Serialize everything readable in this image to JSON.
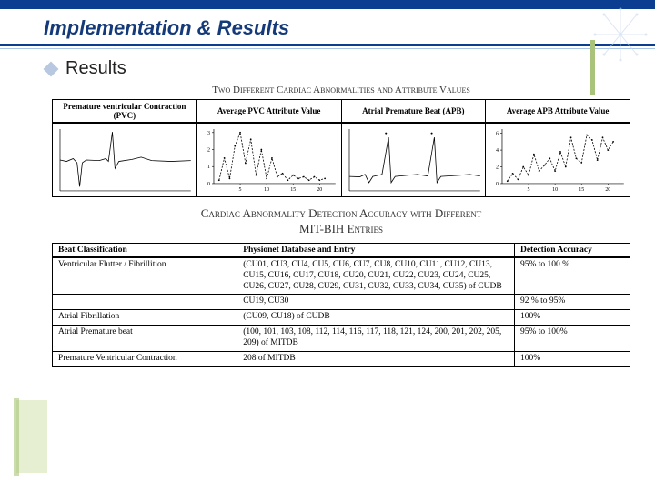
{
  "slide": {
    "title": "Implementation & Results",
    "bullet": "Results"
  },
  "chart_section": {
    "caption": "Two Different Cardiac Abnormalities and Attribute Values",
    "headers": [
      "Premature ventricular Contraction (PVC)",
      "Average PVC Attribute Value",
      "Atrial Premature Beat (APB)",
      "Average APB Attribute Value"
    ],
    "charts": {
      "pvc_wave": {
        "type": "line",
        "xlim": [
          0,
          1
        ],
        "ylim": [
          -1,
          1.2
        ],
        "line_color": "#000000",
        "line_width": 0.8,
        "background": "#ffffff",
        "points": [
          [
            0,
            0.1
          ],
          [
            0.05,
            0.05
          ],
          [
            0.1,
            0.15
          ],
          [
            0.13,
            0.0
          ],
          [
            0.15,
            -0.85
          ],
          [
            0.17,
            0.0
          ],
          [
            0.2,
            0.1
          ],
          [
            0.3,
            0.08
          ],
          [
            0.35,
            0.15
          ],
          [
            0.37,
            0.05
          ],
          [
            0.4,
            1.1
          ],
          [
            0.42,
            -0.2
          ],
          [
            0.45,
            0.05
          ],
          [
            0.55,
            0.12
          ],
          [
            0.62,
            0.2
          ],
          [
            0.7,
            0.08
          ],
          [
            0.85,
            0.05
          ],
          [
            1,
            0.08
          ]
        ]
      },
      "pvc_attr": {
        "type": "line",
        "xlim": [
          0,
          23
        ],
        "ylim": [
          0,
          3.2
        ],
        "xticks": [
          5,
          10,
          15,
          20
        ],
        "yticks": [
          0,
          1,
          2,
          3
        ],
        "line_color": "#000000",
        "dash": true,
        "line_width": 0.8,
        "marker": "dot",
        "marker_color": "#000000",
        "points": [
          [
            1,
            0.2
          ],
          [
            2,
            1.5
          ],
          [
            3,
            0.3
          ],
          [
            4,
            2.2
          ],
          [
            5,
            3.0
          ],
          [
            6,
            1.2
          ],
          [
            7,
            2.6
          ],
          [
            8,
            0.5
          ],
          [
            9,
            2.0
          ],
          [
            10,
            0.3
          ],
          [
            11,
            1.5
          ],
          [
            12,
            0.4
          ],
          [
            13,
            0.6
          ],
          [
            14,
            0.2
          ],
          [
            15,
            0.5
          ],
          [
            16,
            0.3
          ],
          [
            17,
            0.4
          ],
          [
            18,
            0.2
          ],
          [
            19,
            0.4
          ],
          [
            20,
            0.2
          ],
          [
            21,
            0.3
          ]
        ]
      },
      "apb_wave": {
        "type": "line",
        "xlim": [
          0,
          1
        ],
        "ylim": [
          -0.3,
          1.2
        ],
        "line_color": "#000000",
        "line_width": 0.8,
        "points": [
          [
            0,
            0.05
          ],
          [
            0.08,
            0.04
          ],
          [
            0.12,
            0.1
          ],
          [
            0.15,
            -0.1
          ],
          [
            0.18,
            0.05
          ],
          [
            0.25,
            0.1
          ],
          [
            0.3,
            1.0
          ],
          [
            0.32,
            -0.1
          ],
          [
            0.35,
            0.05
          ],
          [
            0.45,
            0.08
          ],
          [
            0.52,
            0.1
          ],
          [
            0.6,
            0.06
          ],
          [
            0.65,
            1.0
          ],
          [
            0.67,
            -0.1
          ],
          [
            0.7,
            0.05
          ],
          [
            0.85,
            0.08
          ],
          [
            0.92,
            0.1
          ],
          [
            1,
            0.06
          ]
        ],
        "markers_above": [
          [
            0.28,
            1.1
          ],
          [
            0.63,
            1.1
          ]
        ]
      },
      "apb_attr": {
        "type": "line",
        "xlim": [
          0,
          23
        ],
        "ylim": [
          0,
          6.5
        ],
        "xticks": [
          5,
          10,
          15,
          20
        ],
        "yticks": [
          0,
          2,
          4,
          6
        ],
        "line_color": "#000000",
        "dash": true,
        "line_width": 0.8,
        "marker": "dot",
        "points": [
          [
            1,
            0.3
          ],
          [
            2,
            1.2
          ],
          [
            3,
            0.5
          ],
          [
            4,
            2.0
          ],
          [
            5,
            1.0
          ],
          [
            6,
            3.5
          ],
          [
            7,
            1.5
          ],
          [
            8,
            2.2
          ],
          [
            9,
            3.0
          ],
          [
            10,
            1.5
          ],
          [
            11,
            3.8
          ],
          [
            12,
            2.0
          ],
          [
            13,
            5.5
          ],
          [
            14,
            3.0
          ],
          [
            15,
            2.5
          ],
          [
            16,
            5.8
          ],
          [
            17,
            5.2
          ],
          [
            18,
            2.8
          ],
          [
            19,
            5.5
          ],
          [
            20,
            4.0
          ],
          [
            21,
            5.0
          ]
        ]
      }
    }
  },
  "accuracy_section": {
    "caption_line1": "Cardiac Abnormality Detection Accuracy with Different",
    "caption_line2": "MIT-BIH Entries",
    "headers": [
      "Beat Classification",
      "Physionet Database and Entry",
      "Detection Accuracy"
    ],
    "rows": [
      {
        "classification": "Ventricular Flutter / Fibrillition",
        "entry": "(CU01, CU3, CU4, CU5, CU6, CU7, CU8, CU10, CU11, CU12, CU13, CU15, CU16, CU17, CU18, CU20, CU21, CU22, CU23, CU24, CU25, CU26, CU27, CU28, CU29, CU31, CU32, CU33, CU34, CU35) of CUDB",
        "accuracy": "95% to 100 %"
      },
      {
        "classification": "",
        "entry": "CU19, CU30",
        "accuracy": "92 % to 95%"
      },
      {
        "classification": "Atrial Fibrillation",
        "entry": "(CU09, CU18) of CUDB",
        "accuracy": "100%"
      },
      {
        "classification": "Atrial Premature beat",
        "entry": "(100, 101, 103, 108, 112, 114, 116, 117, 118, 121, 124, 200, 201, 202, 205, 209) of MITDB",
        "accuracy": "95% to 100%"
      },
      {
        "classification": "Premature Ventricular Contraction",
        "entry": "208 of MITDB",
        "accuracy": "100%"
      }
    ]
  },
  "colors": {
    "title_bar": "#0b3d91",
    "accent_green": "#a9c47a"
  }
}
